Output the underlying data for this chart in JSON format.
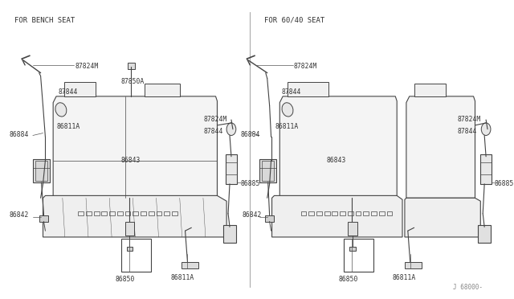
{
  "background_color": "#ffffff",
  "border_color": "#000000",
  "line_color": "#444444",
  "text_color": "#333333",
  "label_color": "#555555",
  "left_label": "FOR BENCH SEAT",
  "right_label": "FOR 60/40 SEAT",
  "watermark": "J 68000-",
  "fig_width": 6.4,
  "fig_height": 3.72,
  "dpi": 100
}
